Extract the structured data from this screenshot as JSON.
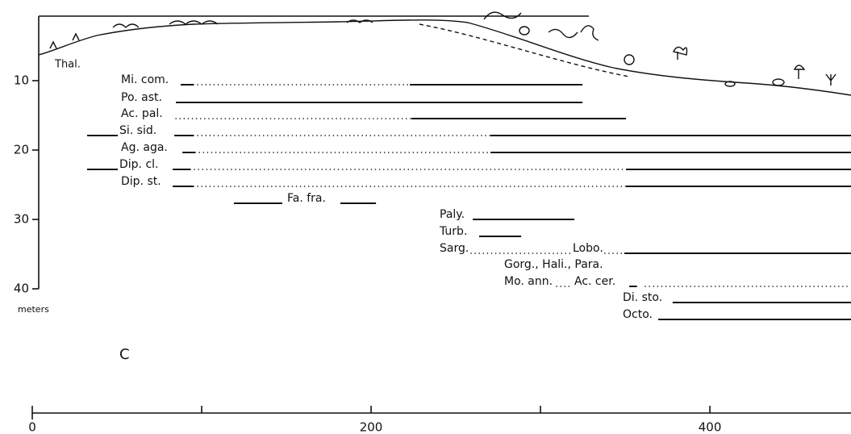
{
  "chart_data": {
    "type": "zonation",
    "xlim": [
      0,
      483.3
    ],
    "xticks": [
      0,
      200,
      400
    ],
    "xminor_ticks": [
      100,
      300
    ],
    "ylim": [
      0,
      40
    ],
    "yticks": [
      10,
      20,
      30,
      40
    ],
    "y_unit": "meters",
    "annotations": [
      "Thal.",
      "C"
    ],
    "rows": [
      {
        "labels": [
          "Mi. com."
        ],
        "segments": [
          {
            "from": 87.6,
            "to": 95.2,
            "style": "solid"
          },
          {
            "from": 95.2,
            "to": 222.9,
            "style": "dotted"
          },
          {
            "from": 222.9,
            "to": 324.8,
            "style": "solid"
          }
        ]
      },
      {
        "labels": [
          "Po. ast."
        ],
        "segments": [
          {
            "from": 84.8,
            "to": 324.8,
            "style": "solid"
          }
        ]
      },
      {
        "labels": [
          "Ac. pal."
        ],
        "segments": [
          {
            "from": 84.8,
            "to": 223.8,
            "style": "dotted"
          },
          {
            "from": 223.8,
            "to": 350.5,
            "style": "solid"
          }
        ]
      },
      {
        "labels": [
          "Si. sid."
        ],
        "segments": [
          {
            "from": 32.4,
            "to": 50.5,
            "style": "solid"
          },
          {
            "from": 83.8,
            "to": 95.2,
            "style": "solid"
          },
          {
            "from": 95.2,
            "to": 270.5,
            "style": "dotted"
          },
          {
            "from": 270.5,
            "to": 483.3,
            "style": "solid"
          }
        ]
      },
      {
        "labels": [
          "Ag. aga."
        ],
        "segments": [
          {
            "from": 88.6,
            "to": 96.2,
            "style": "solid"
          },
          {
            "from": 96.2,
            "to": 270.5,
            "style": "dotted"
          },
          {
            "from": 270.5,
            "to": 483.3,
            "style": "solid"
          }
        ]
      },
      {
        "labels": [
          "Dip. cl."
        ],
        "segments": [
          {
            "from": 32.4,
            "to": 50.5,
            "style": "solid"
          },
          {
            "from": 82.9,
            "to": 93.3,
            "style": "solid"
          },
          {
            "from": 93.3,
            "to": 350.5,
            "style": "dotted"
          },
          {
            "from": 350.5,
            "to": 483.3,
            "style": "solid"
          }
        ]
      },
      {
        "labels": [
          "Dip. st."
        ],
        "segments": [
          {
            "from": 82.9,
            "to": 95.2,
            "style": "solid"
          },
          {
            "from": 95.2,
            "to": 350.5,
            "style": "dotted"
          },
          {
            "from": 350.5,
            "to": 483.3,
            "style": "solid"
          }
        ]
      },
      {
        "labels": [
          "Fa. fra."
        ],
        "segments": [
          {
            "from": 119,
            "to": 147.6,
            "style": "solid"
          },
          {
            "from": 181.9,
            "to": 202.9,
            "style": "solid"
          }
        ]
      },
      {
        "labels": [
          "Paly."
        ],
        "segments": [
          {
            "from": 260,
            "to": 320,
            "style": "solid"
          }
        ]
      },
      {
        "labels": [
          "Turb."
        ],
        "segments": [
          {
            "from": 263.8,
            "to": 288.6,
            "style": "solid"
          }
        ]
      },
      {
        "labels": [
          "Sarg.",
          "Lobo."
        ],
        "segments": [
          {
            "from": 259,
            "to": 318,
            "style": "dotted"
          },
          {
            "from": 338,
            "to": 349.5,
            "style": "dotted"
          },
          {
            "from": 349.5,
            "to": 483.3,
            "style": "solid"
          }
        ]
      },
      {
        "labels": [
          "Gorg., Hali., Para."
        ],
        "segments": []
      },
      {
        "labels": [
          "Mo. ann.",
          "Ac. cer."
        ],
        "segments": [
          {
            "from": 309.5,
            "to": 319,
            "style": "dotted"
          },
          {
            "from": 352.4,
            "to": 357,
            "style": "solid"
          },
          {
            "from": 361.9,
            "to": 483.3,
            "style": "dotted"
          }
        ]
      },
      {
        "labels": [
          "Di. sto."
        ],
        "segments": [
          {
            "from": 378,
            "to": 483.3,
            "style": "solid"
          }
        ]
      },
      {
        "labels": [
          "Octo."
        ],
        "segments": [
          {
            "from": 369.5,
            "to": 483.3,
            "style": "solid"
          }
        ]
      }
    ]
  }
}
